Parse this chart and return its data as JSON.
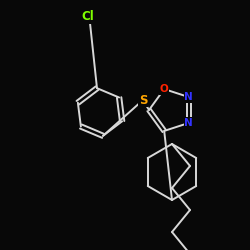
{
  "background_color": "#080808",
  "bond_color": "#d8d8d8",
  "atom_colors": {
    "Cl": "#7fff00",
    "S": "#ffa500",
    "O": "#ff2200",
    "N": "#3333ff"
  },
  "bond_width": 1.4,
  "font_size": 7.5,
  "fig_size": [
    2.5,
    2.5
  ],
  "dpi": 100
}
